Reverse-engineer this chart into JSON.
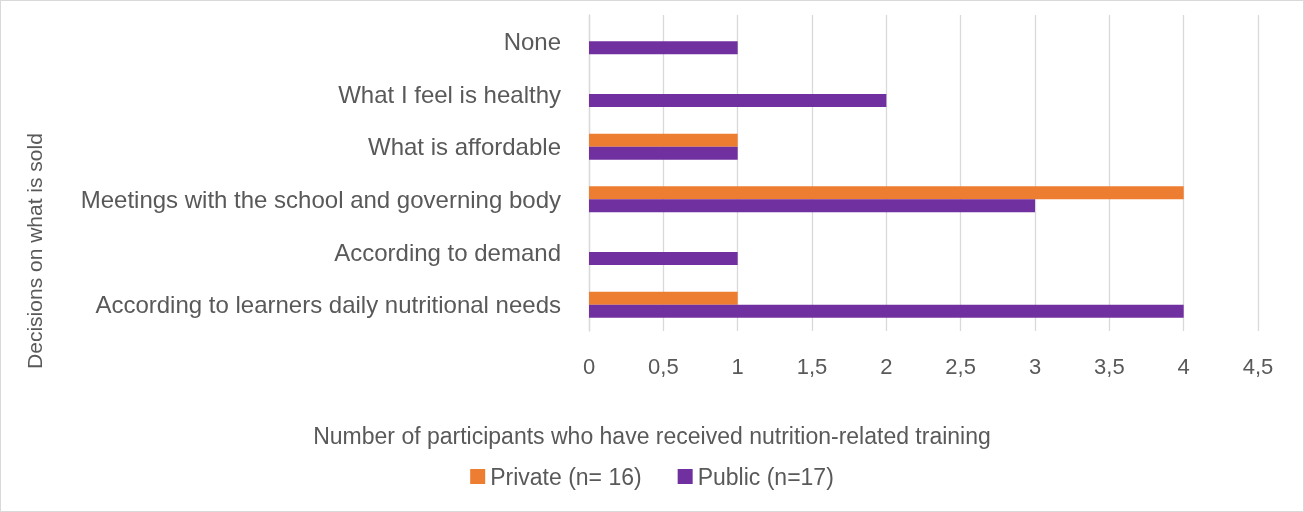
{
  "chart_data": {
    "type": "bar",
    "orientation": "horizontal",
    "xlabel": "Number of participants who have received nutrition-related training",
    "ylabel": "Decisions on what is sold",
    "categories": [
      "None",
      "What I feel is healthy",
      "What is affordable",
      "Meetings with the school and governing body",
      "According to demand",
      "According to learners daily nutritional needs"
    ],
    "series": [
      {
        "name": "Private (n= 16)",
        "color": "#ed7d31",
        "values": [
          null,
          null,
          1,
          4,
          null,
          1
        ]
      },
      {
        "name": "Public (n=17)",
        "color": "#7030a0",
        "values": [
          1,
          2,
          1,
          3,
          1,
          4
        ]
      }
    ],
    "xlim": [
      0,
      4.5
    ],
    "xticks": [
      0,
      {
        "value": 0.5,
        "label": "0,5"
      },
      1,
      {
        "value": 1.5,
        "label": "1,5"
      },
      2,
      {
        "value": 2.5,
        "label": "2,5"
      },
      3,
      {
        "value": 3.5,
        "label": "3,5"
      },
      4,
      {
        "value": 4.5,
        "label": "4,5"
      }
    ],
    "grid": "x",
    "legend": "bottom"
  }
}
